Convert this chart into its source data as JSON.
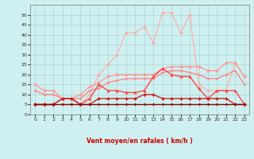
{
  "xlabel": "Vent moyen/en rafales ( km/h )",
  "background_color": "#cff0f0",
  "grid_color": "#aad4d4",
  "x": [
    0,
    1,
    2,
    3,
    4,
    5,
    6,
    7,
    8,
    9,
    10,
    11,
    12,
    13,
    14,
    15,
    16,
    17,
    18,
    19,
    20,
    21,
    22,
    23
  ],
  "series": [
    {
      "y": [
        5,
        5,
        5,
        5,
        5,
        5,
        10,
        20,
        25,
        30,
        41,
        41,
        44,
        36,
        51,
        51,
        41,
        50,
        15,
        12,
        12,
        12,
        26,
        19
      ],
      "color": "#ffaaaa",
      "lw": 0.8,
      "marker": "D",
      "ms": 2.0,
      "zorder": 2
    },
    {
      "y": [
        15,
        12,
        12,
        8,
        8,
        10,
        14,
        16,
        19,
        20,
        20,
        20,
        20,
        20,
        23,
        24,
        24,
        24,
        24,
        22,
        22,
        26,
        26,
        19
      ],
      "color": "#ff9999",
      "lw": 1.0,
      "marker": "D",
      "ms": 2.0,
      "zorder": 3
    },
    {
      "y": [
        12,
        10,
        10,
        8,
        8,
        8,
        12,
        13,
        16,
        17,
        18,
        18,
        18,
        18,
        21,
        22,
        22,
        21,
        20,
        18,
        18,
        20,
        22,
        15
      ],
      "color": "#ff8888",
      "lw": 1.0,
      "marker": "D",
      "ms": 1.5,
      "zorder": 4
    },
    {
      "y": [
        5,
        5,
        5,
        8,
        8,
        5,
        8,
        15,
        12,
        12,
        11,
        11,
        12,
        19,
        23,
        20,
        19,
        19,
        13,
        8,
        12,
        12,
        12,
        5
      ],
      "color": "#ff4444",
      "lw": 1.0,
      "marker": "^",
      "ms": 2.5,
      "zorder": 5
    },
    {
      "y": [
        5,
        5,
        5,
        8,
        8,
        5,
        5,
        8,
        8,
        8,
        8,
        8,
        10,
        10,
        8,
        8,
        8,
        8,
        8,
        8,
        8,
        8,
        5,
        5
      ],
      "color": "#cc2222",
      "lw": 1.0,
      "marker": "D",
      "ms": 2.0,
      "zorder": 6
    },
    {
      "y": [
        5,
        5,
        5,
        5,
        5,
        5,
        5,
        5,
        5,
        5,
        5,
        5,
        5,
        5,
        5,
        5,
        5,
        5,
        5,
        5,
        5,
        5,
        5,
        5
      ],
      "color": "#880000",
      "lw": 1.0,
      "marker": "D",
      "ms": 1.5,
      "zorder": 7
    }
  ],
  "ylim": [
    0,
    55
  ],
  "yticks": [
    0,
    5,
    10,
    15,
    20,
    25,
    30,
    35,
    40,
    45,
    50
  ],
  "xlim": [
    -0.5,
    23.5
  ],
  "xticks": [
    0,
    1,
    2,
    3,
    4,
    5,
    6,
    7,
    8,
    9,
    10,
    11,
    12,
    13,
    14,
    15,
    16,
    17,
    18,
    19,
    20,
    21,
    22,
    23
  ],
  "arrow_color": "#cc3333",
  "arrow_directions": [
    225,
    270,
    315,
    0,
    0,
    45,
    45,
    45,
    45,
    0,
    0,
    45,
    45,
    135,
    135,
    135,
    135,
    135,
    135,
    135,
    135,
    135,
    90,
    0
  ]
}
